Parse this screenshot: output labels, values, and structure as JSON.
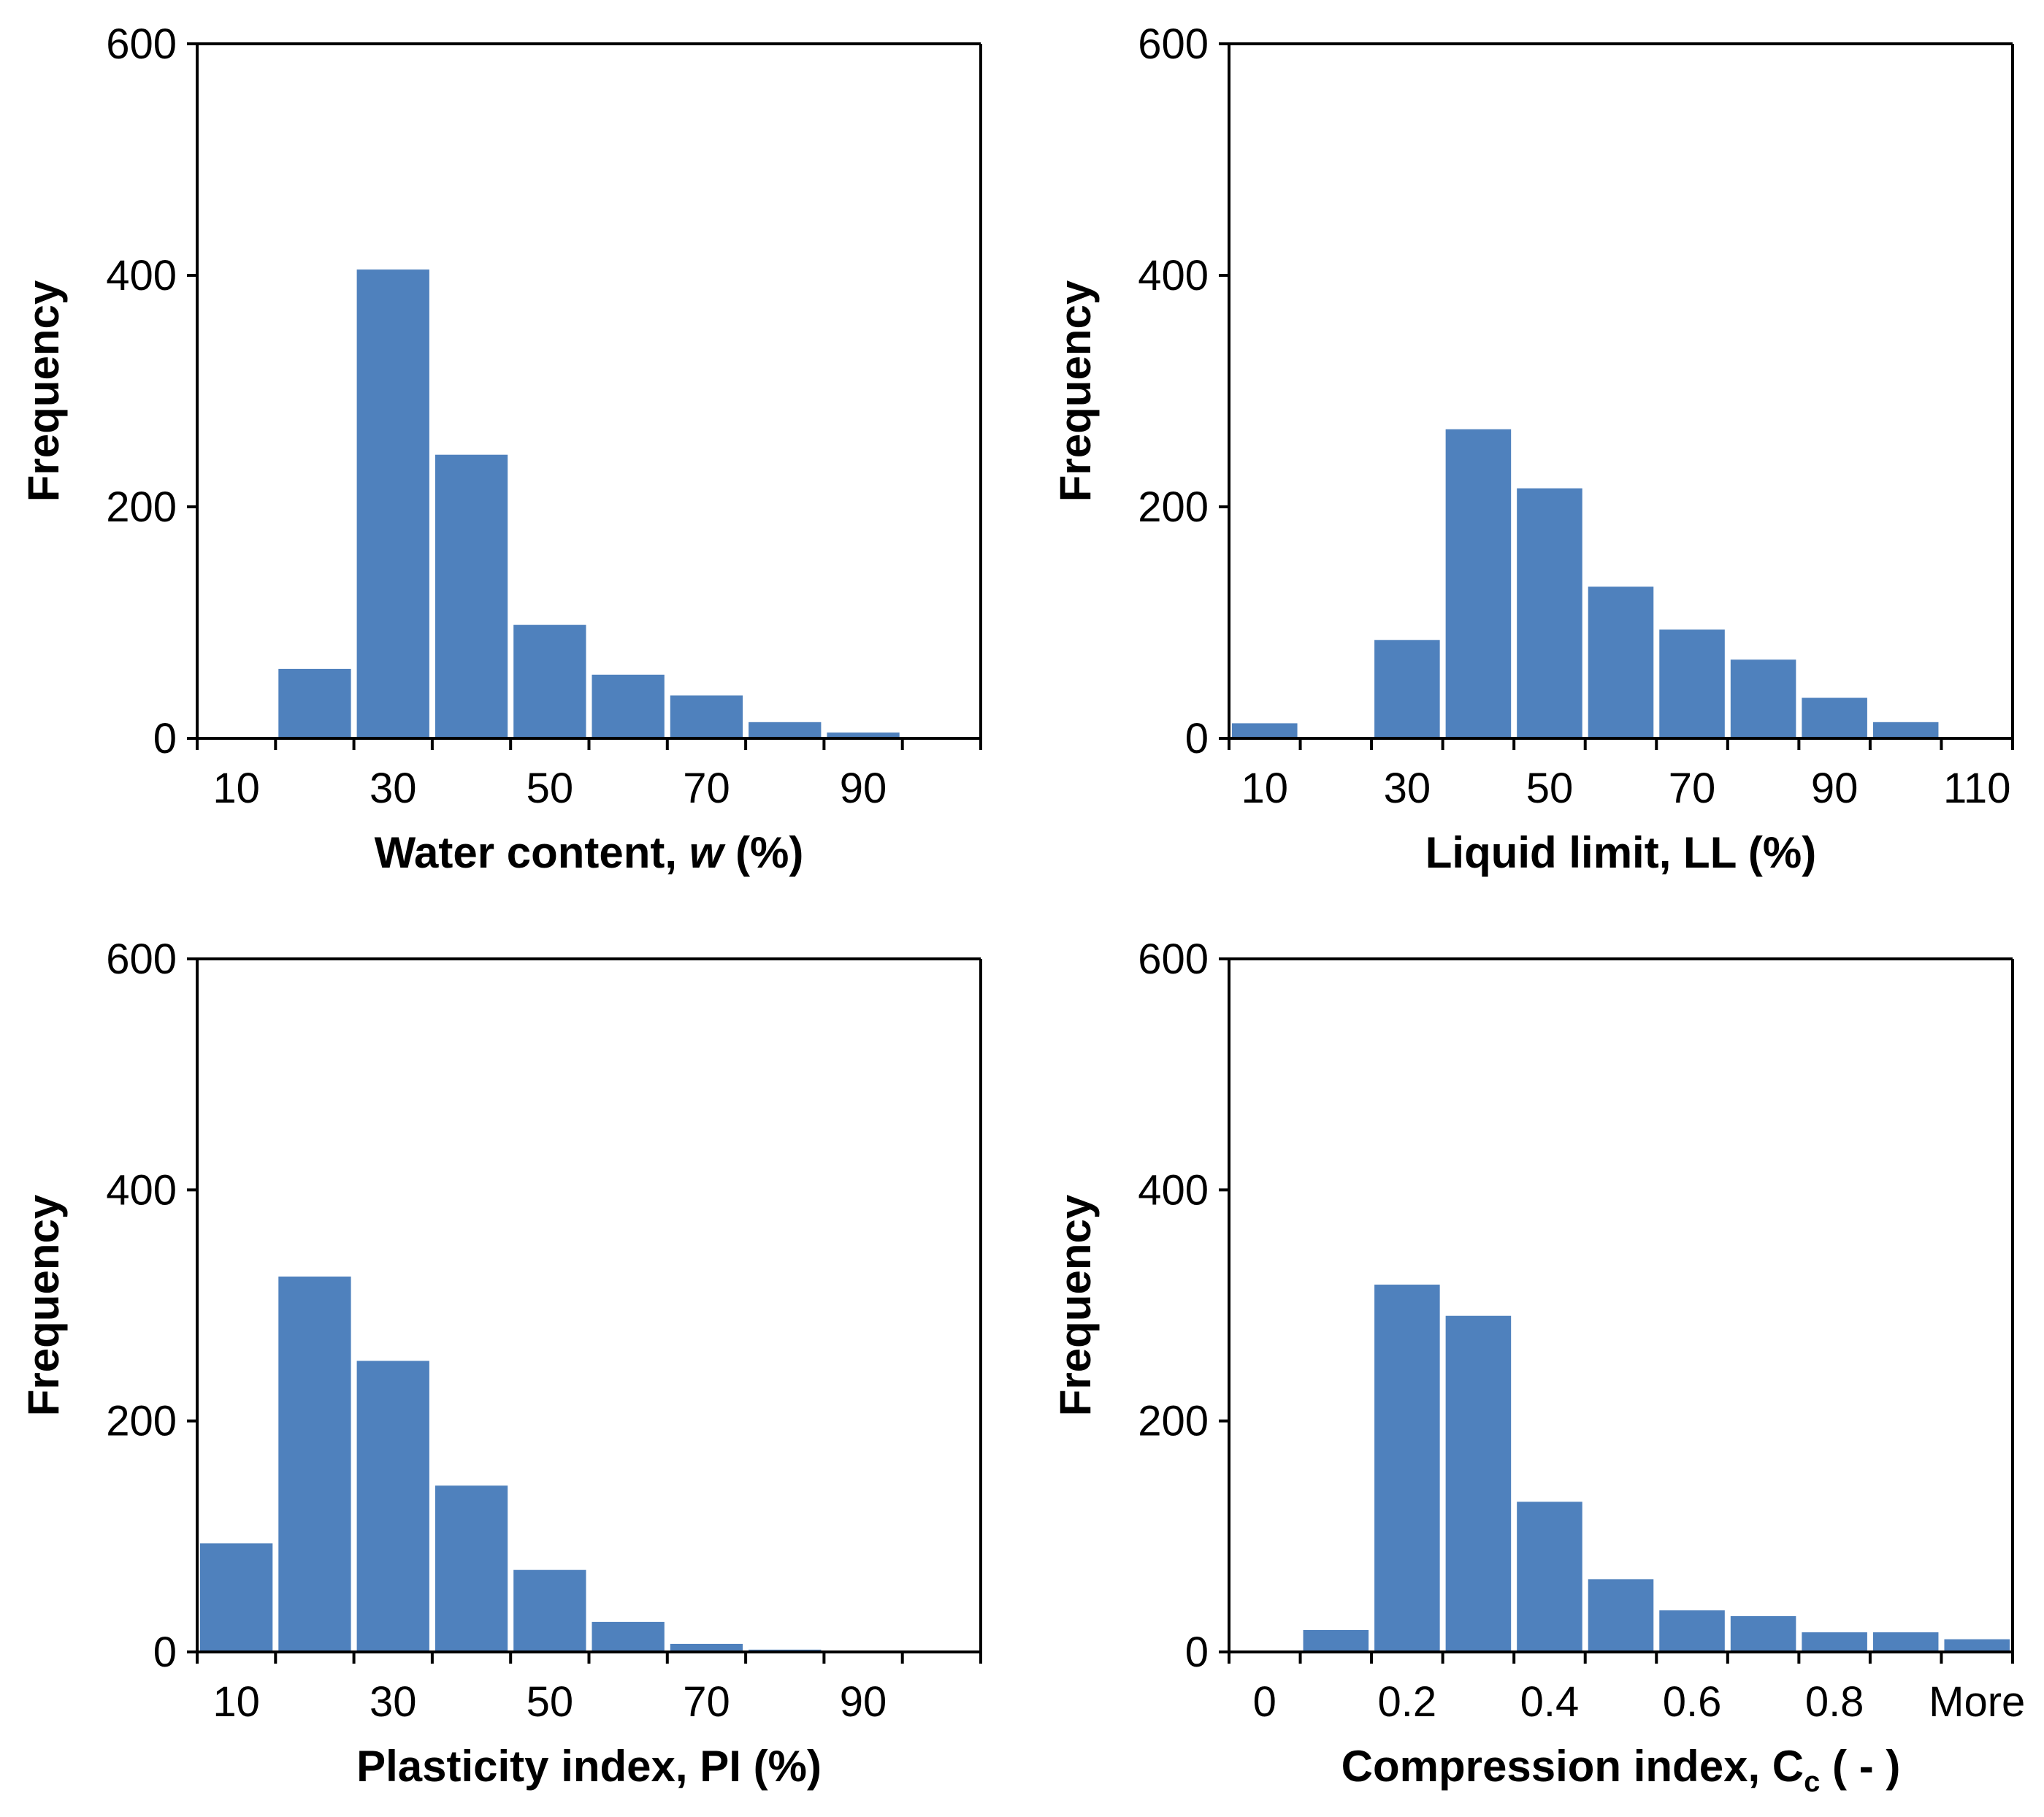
{
  "figure": {
    "bar_color": "#4f81bd",
    "axis_color": "#000000"
  },
  "chart_data": [
    {
      "type": "bar",
      "title": "",
      "xlabel": "Water content, w (%)",
      "xlabel_parts": [
        "Water content, ",
        "w",
        " (%)"
      ],
      "ylabel": "Frequency",
      "ylim": [
        0,
        600
      ],
      "yticks": [
        0,
        200,
        400,
        600
      ],
      "xtick_labels": [
        "10",
        "30",
        "50",
        "70",
        "90"
      ],
      "values": [
        0,
        60,
        405,
        245,
        98,
        55,
        37,
        14,
        5,
        0
      ],
      "grid": false,
      "legend": "none"
    },
    {
      "type": "bar",
      "title": "",
      "xlabel": "Liquid limit, LL (%)",
      "xlabel_parts": [
        "Liquid limit, LL (%)"
      ],
      "ylabel": "Frequency",
      "ylim": [
        0,
        600
      ],
      "yticks": [
        0,
        200,
        400,
        600
      ],
      "xtick_labels": [
        "10",
        "30",
        "50",
        "70",
        "90",
        "110"
      ],
      "values": [
        13,
        0,
        85,
        267,
        216,
        131,
        94,
        68,
        35,
        14,
        0
      ],
      "grid": false,
      "legend": "none"
    },
    {
      "type": "bar",
      "title": "",
      "xlabel": "Plasticity index, PI (%)",
      "xlabel_parts": [
        "Plasticity index, PI (%)"
      ],
      "ylabel": "Frequency",
      "ylim": [
        0,
        600
      ],
      "yticks": [
        0,
        200,
        400,
        600
      ],
      "xtick_labels": [
        "10",
        "30",
        "50",
        "70",
        "90"
      ],
      "values": [
        94,
        325,
        252,
        144,
        71,
        26,
        7,
        2,
        1,
        1
      ],
      "grid": false,
      "legend": "none"
    },
    {
      "type": "bar",
      "title": "",
      "xlabel": "Compression index, Cc ( - )",
      "xlabel_parts": [
        "Compression index, C",
        "c",
        " ( - )"
      ],
      "ylabel": "Frequency",
      "ylim": [
        0,
        600
      ],
      "yticks": [
        0,
        200,
        400,
        600
      ],
      "xtick_labels": [
        "0",
        "0.2",
        "0.4",
        "0.6",
        "0.8",
        "More"
      ],
      "values": [
        0,
        19,
        318,
        291,
        130,
        63,
        36,
        31,
        17,
        17,
        11
      ],
      "grid": false,
      "legend": "none"
    }
  ]
}
